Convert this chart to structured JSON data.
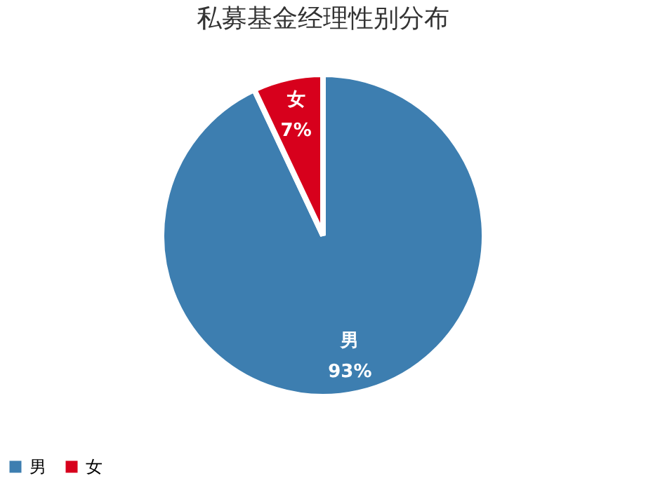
{
  "chart_data": {
    "type": "pie",
    "title": "私募基金经理性别分布",
    "categories": [
      "男",
      "女"
    ],
    "values": [
      93,
      7
    ],
    "colors": [
      "#3d7eb0",
      "#d7001c"
    ],
    "value_labels": [
      "93%",
      "7%"
    ],
    "legend": "bottom"
  }
}
